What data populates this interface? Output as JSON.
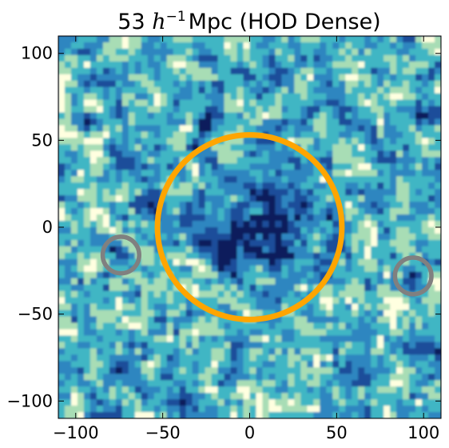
{
  "chart_data": {
    "type": "heatmap",
    "title": {
      "prefix": "53 ",
      "math_base": "h",
      "math_exponent": "−1",
      "suffix": "Mpc (HOD Dense)"
    },
    "xlabel": "",
    "ylabel": "",
    "xlim": [
      -110,
      110
    ],
    "ylim": [
      -110,
      110
    ],
    "xticks": [
      {
        "value": -100,
        "label": "−100"
      },
      {
        "value": -50,
        "label": "−50"
      },
      {
        "value": 0,
        "label": "0"
      },
      {
        "value": 50,
        "label": "50"
      },
      {
        "value": 100,
        "label": "100"
      }
    ],
    "yticks": [
      {
        "value": 100,
        "label": "100"
      },
      {
        "value": 50,
        "label": "50"
      },
      {
        "value": 0,
        "label": "0"
      },
      {
        "value": -50,
        "label": "−50"
      },
      {
        "value": -100,
        "label": "−100"
      }
    ],
    "grid": false,
    "colormap": [
      "#0b1e5c",
      "#1b4d9a",
      "#2f86c0",
      "#41b6c4",
      "#a8ddb5",
      "#ffffe0"
    ],
    "circles": [
      {
        "name": "main-void",
        "cx": 0,
        "cy": 0,
        "r": 53,
        "color": "#ffa500"
      },
      {
        "name": "small-void-left",
        "cx": -74,
        "cy": -16,
        "r": 10.5,
        "color": "#808080"
      },
      {
        "name": "small-void-right",
        "cx": 94,
        "cy": -28,
        "r": 10.5,
        "color": "#808080"
      }
    ]
  }
}
